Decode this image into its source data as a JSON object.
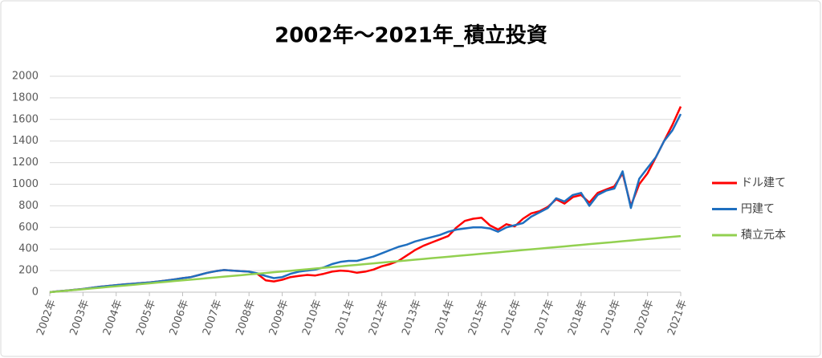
{
  "chart_data": {
    "type": "line",
    "title": "2002年～2021年_積立投資",
    "x": [
      2002,
      2002.25,
      2002.5,
      2002.75,
      2003,
      2003.25,
      2003.5,
      2003.75,
      2004,
      2004.25,
      2004.5,
      2004.75,
      2005,
      2005.25,
      2005.5,
      2005.75,
      2006,
      2006.25,
      2006.5,
      2006.75,
      2007,
      2007.25,
      2007.5,
      2007.75,
      2008,
      2008.25,
      2008.5,
      2008.75,
      2009,
      2009.25,
      2009.5,
      2009.75,
      2010,
      2010.25,
      2010.5,
      2010.75,
      2011,
      2011.25,
      2011.5,
      2011.75,
      2012,
      2012.25,
      2012.5,
      2012.75,
      2013,
      2013.25,
      2013.5,
      2013.75,
      2014,
      2014.25,
      2014.5,
      2014.75,
      2015,
      2015.25,
      2015.5,
      2015.75,
      2016,
      2016.25,
      2016.5,
      2016.75,
      2017,
      2017.25,
      2017.5,
      2017.75,
      2018,
      2018.25,
      2018.5,
      2018.75,
      2019,
      2019.25,
      2019.5,
      2019.75,
      2020,
      2020.25,
      2020.5,
      2020.75,
      2021
    ],
    "series": [
      {
        "name": "ドル建て",
        "color": "#ff0000",
        "values": [
          0,
          8,
          15,
          22,
          30,
          40,
          50,
          58,
          65,
          72,
          78,
          85,
          90,
          98,
          108,
          118,
          130,
          140,
          160,
          180,
          195,
          205,
          200,
          195,
          190,
          170,
          110,
          100,
          115,
          140,
          150,
          160,
          155,
          170,
          190,
          200,
          195,
          180,
          190,
          210,
          240,
          260,
          290,
          340,
          390,
          430,
          460,
          490,
          520,
          600,
          660,
          680,
          690,
          620,
          580,
          630,
          610,
          680,
          730,
          750,
          790,
          860,
          820,
          880,
          900,
          830,
          920,
          950,
          980,
          1100,
          800,
          1000,
          1100,
          1250,
          1400,
          1550,
          1720
        ]
      },
      {
        "name": "円建て",
        "color": "#1f6fbf",
        "values": [
          0,
          8,
          15,
          22,
          30,
          40,
          50,
          58,
          65,
          72,
          78,
          85,
          90,
          98,
          108,
          118,
          130,
          140,
          160,
          180,
          195,
          205,
          200,
          195,
          190,
          175,
          150,
          130,
          140,
          170,
          190,
          200,
          210,
          230,
          260,
          280,
          290,
          290,
          310,
          330,
          360,
          390,
          420,
          440,
          470,
          490,
          510,
          530,
          560,
          580,
          590,
          600,
          600,
          590,
          560,
          600,
          620,
          640,
          700,
          740,
          780,
          870,
          840,
          900,
          920,
          800,
          900,
          940,
          960,
          1120,
          780,
          1050,
          1150,
          1250,
          1400,
          1500,
          1650
        ]
      },
      {
        "name": "積立元本",
        "color": "#92d050",
        "values": [
          0,
          7,
          14,
          21,
          27,
          34,
          41,
          48,
          55,
          62,
          68,
          75,
          82,
          89,
          96,
          103,
          109,
          116,
          123,
          130,
          137,
          144,
          151,
          157,
          164,
          171,
          178,
          185,
          192,
          198,
          205,
          212,
          219,
          226,
          233,
          239,
          246,
          253,
          260,
          267,
          274,
          281,
          287,
          294,
          301,
          308,
          315,
          322,
          328,
          335,
          342,
          349,
          356,
          363,
          369,
          376,
          383,
          390,
          397,
          404,
          411,
          417,
          424,
          431,
          438,
          445,
          452,
          458,
          465,
          472,
          479,
          486,
          493,
          499,
          506,
          513,
          520
        ]
      }
    ],
    "xlim": [
      2002,
      2021
    ],
    "xticks": [
      {
        "value": 2002,
        "label": "2002年"
      },
      {
        "value": 2003,
        "label": "2003年"
      },
      {
        "value": 2004,
        "label": "2004年"
      },
      {
        "value": 2005,
        "label": "2005年"
      },
      {
        "value": 2006,
        "label": "2006年"
      },
      {
        "value": 2007,
        "label": "2007年"
      },
      {
        "value": 2008,
        "label": "2008年"
      },
      {
        "value": 2009,
        "label": "2009年"
      },
      {
        "value": 2010,
        "label": "2010年"
      },
      {
        "value": 2011,
        "label": "2011年"
      },
      {
        "value": 2012,
        "label": "2012年"
      },
      {
        "value": 2013,
        "label": "2013年"
      },
      {
        "value": 2014,
        "label": "2014年"
      },
      {
        "value": 2015,
        "label": "2015年"
      },
      {
        "value": 2016,
        "label": "2016年"
      },
      {
        "value": 2017,
        "label": "2017年"
      },
      {
        "value": 2018,
        "label": "2018年"
      },
      {
        "value": 2019,
        "label": "2019年"
      },
      {
        "value": 2020,
        "label": "2020年"
      },
      {
        "value": 2021,
        "label": "2021年"
      }
    ],
    "ylim": [
      0,
      2000
    ],
    "yticks": [
      0,
      200,
      400,
      600,
      800,
      1000,
      1200,
      1400,
      1600,
      1800,
      2000
    ],
    "grid": true,
    "legend": "right"
  }
}
